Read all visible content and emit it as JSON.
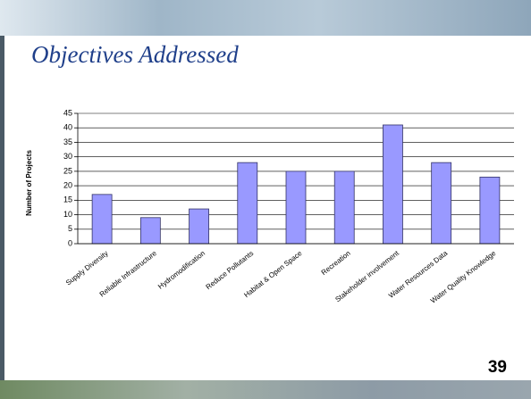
{
  "slide_title": "Objectives Addressed",
  "page_number": "39",
  "chart_data": {
    "type": "bar",
    "y_label": "Number of Projects",
    "categories": [
      "Supply Diversity",
      "Reliable Infrastructure",
      "Hydromodification",
      "Reduce Pollutants",
      "Habitat & Open Space",
      "Recreation",
      "Stakeholder involvement",
      "Water Resources Data",
      "Water Quality Knowledge"
    ],
    "values": [
      17,
      9,
      12,
      28,
      25,
      25,
      41,
      28,
      23
    ],
    "color": "#9999ff",
    "ylim": [
      0,
      45
    ],
    "yticks": [
      0,
      5,
      10,
      15,
      20,
      25,
      30,
      35,
      40,
      45
    ],
    "grid": true
  }
}
